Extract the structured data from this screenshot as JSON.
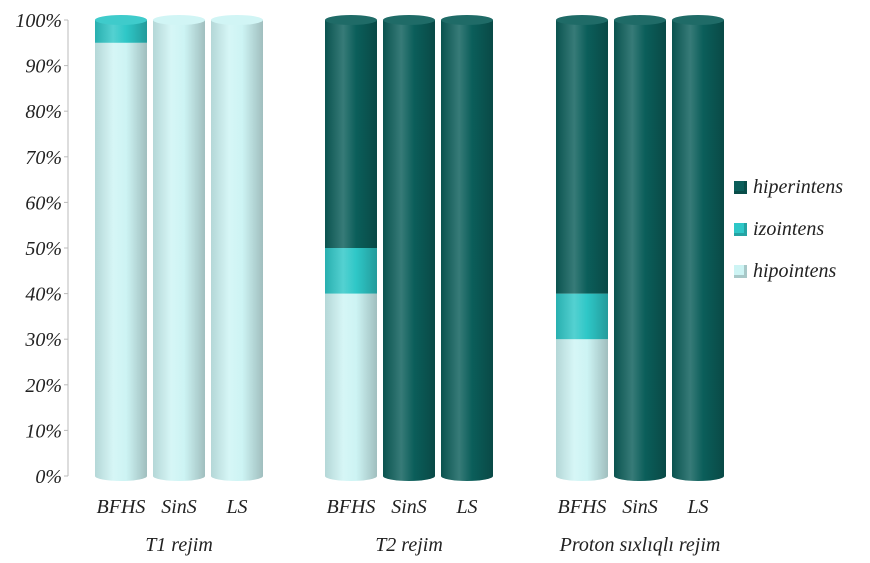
{
  "chart_data": {
    "type": "bar",
    "stacked": true,
    "normalized_percent": true,
    "ylim": [
      0,
      100
    ],
    "yticks": [
      "0%",
      "10%",
      "20%",
      "30%",
      "40%",
      "50%",
      "60%",
      "70%",
      "80%",
      "90%",
      "100%"
    ],
    "groups": [
      {
        "label": "T1 rejim",
        "categories": [
          "BFHS",
          "SinS",
          "LS"
        ]
      },
      {
        "label": "T2 rejim",
        "categories": [
          "BFHS",
          "SinS",
          "LS"
        ]
      },
      {
        "label": "Proton sıxlıqlı  rejim",
        "categories": [
          "BFHS",
          "SinS",
          "LS"
        ]
      }
    ],
    "series": [
      {
        "name": "hipointens",
        "color": "#cdf4f4",
        "values": [
          95,
          100,
          100,
          40,
          0,
          0,
          30,
          0,
          0
        ]
      },
      {
        "name": "izointens",
        "color": "#2ec7c7",
        "values": [
          5,
          0,
          0,
          10,
          0,
          0,
          10,
          0,
          0
        ]
      },
      {
        "name": "hiperintens",
        "color": "#0b5e5a",
        "values": [
          0,
          0,
          0,
          50,
          100,
          100,
          60,
          100,
          100
        ]
      }
    ],
    "legend_position": "right",
    "legend_order": [
      "hiperintens",
      "izointens",
      "hipointens"
    ],
    "grid": false
  }
}
